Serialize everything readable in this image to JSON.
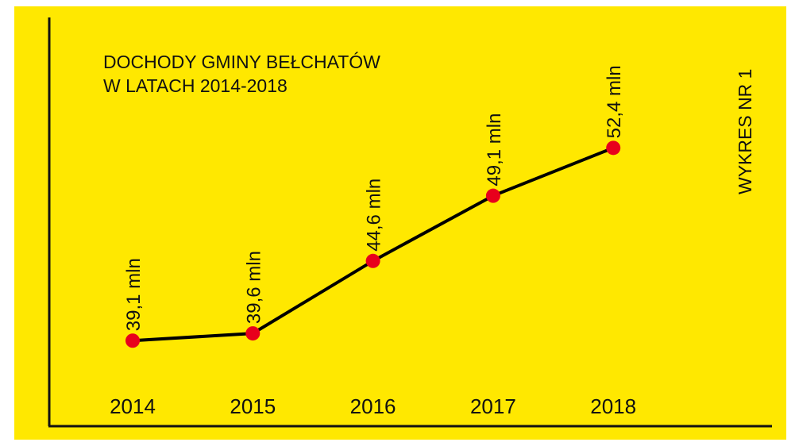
{
  "chart_data": {
    "type": "line",
    "title": [
      "DOCHODY GMINY BEŁCHATÓW",
      "W LATACH 2014-2018"
    ],
    "annotation": "WYKRES NR 1",
    "categories": [
      "2014",
      "2015",
      "2016",
      "2017",
      "2018"
    ],
    "values": [
      39.1,
      39.6,
      44.6,
      49.1,
      52.4
    ],
    "value_labels": [
      "39,1 mln",
      "39,6 mln",
      "44,6 mln",
      "49,1 mln",
      "52,4 mln"
    ],
    "ylim": [
      33.2,
      61.4
    ],
    "color": "#000000",
    "marker_color": "#e8001c",
    "background": "#ffe800"
  }
}
